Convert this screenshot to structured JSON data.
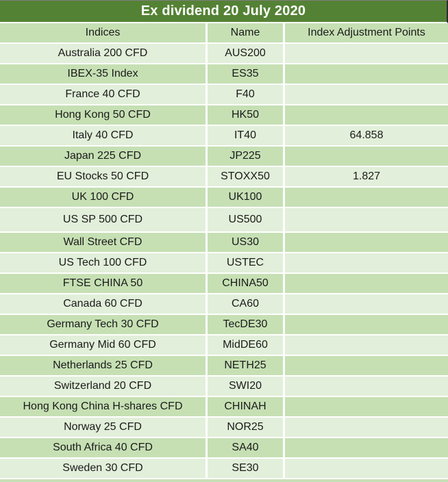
{
  "title": "Ex dividend 20 July 2020",
  "colors": {
    "title_bg": "#548235",
    "title_text": "#FFFFFF",
    "row_medium_green": "#C6E0B4",
    "row_pale_green": "#E2EFDA",
    "separator": "#FFFFFF",
    "text": "#1A1A1A"
  },
  "table": {
    "columns": [
      "Indices",
      "Name",
      "Index Adjustment Points"
    ],
    "rows": [
      {
        "indices": "Australia 200 CFD",
        "name": "AUS200",
        "points": ""
      },
      {
        "indices": "IBEX-35 Index",
        "name": "ES35",
        "points": ""
      },
      {
        "indices": "France 40 CFD",
        "name": "F40",
        "points": ""
      },
      {
        "indices": "Hong Kong 50 CFD",
        "name": "HK50",
        "points": ""
      },
      {
        "indices": "Italy 40 CFD",
        "name": "IT40",
        "points": "64.858"
      },
      {
        "indices": "Japan 225 CFD",
        "name": "JP225",
        "points": ""
      },
      {
        "indices": "EU Stocks 50 CFD",
        "name": "STOXX50",
        "points": "1.827"
      },
      {
        "indices": "UK 100 CFD",
        "name": "UK100",
        "points": ""
      },
      {
        "indices": "US SP 500 CFD",
        "name": "US500",
        "points": ""
      },
      {
        "indices": "Wall Street CFD",
        "name": "US30",
        "points": ""
      },
      {
        "indices": "US Tech 100 CFD",
        "name": "USTEC",
        "points": ""
      },
      {
        "indices": "FTSE CHINA 50",
        "name": "CHINA50",
        "points": ""
      },
      {
        "indices": "Canada 60 CFD",
        "name": "CA60",
        "points": ""
      },
      {
        "indices": "Germany Tech 30 CFD",
        "name": "TecDE30",
        "points": ""
      },
      {
        "indices": "Germany Mid 60 CFD",
        "name": "MidDE60",
        "points": ""
      },
      {
        "indices": "Netherlands 25 CFD",
        "name": "NETH25",
        "points": ""
      },
      {
        "indices": "Switzerland 20 CFD",
        "name": "SWI20",
        "points": ""
      },
      {
        "indices": "Hong Kong China H-shares CFD",
        "name": "CHINAH",
        "points": ""
      },
      {
        "indices": "Norway 25 CFD",
        "name": "NOR25",
        "points": ""
      },
      {
        "indices": "South Africa 40 CFD",
        "name": "SA40",
        "points": ""
      },
      {
        "indices": "Sweden 30 CFD",
        "name": "SE30",
        "points": ""
      }
    ]
  }
}
